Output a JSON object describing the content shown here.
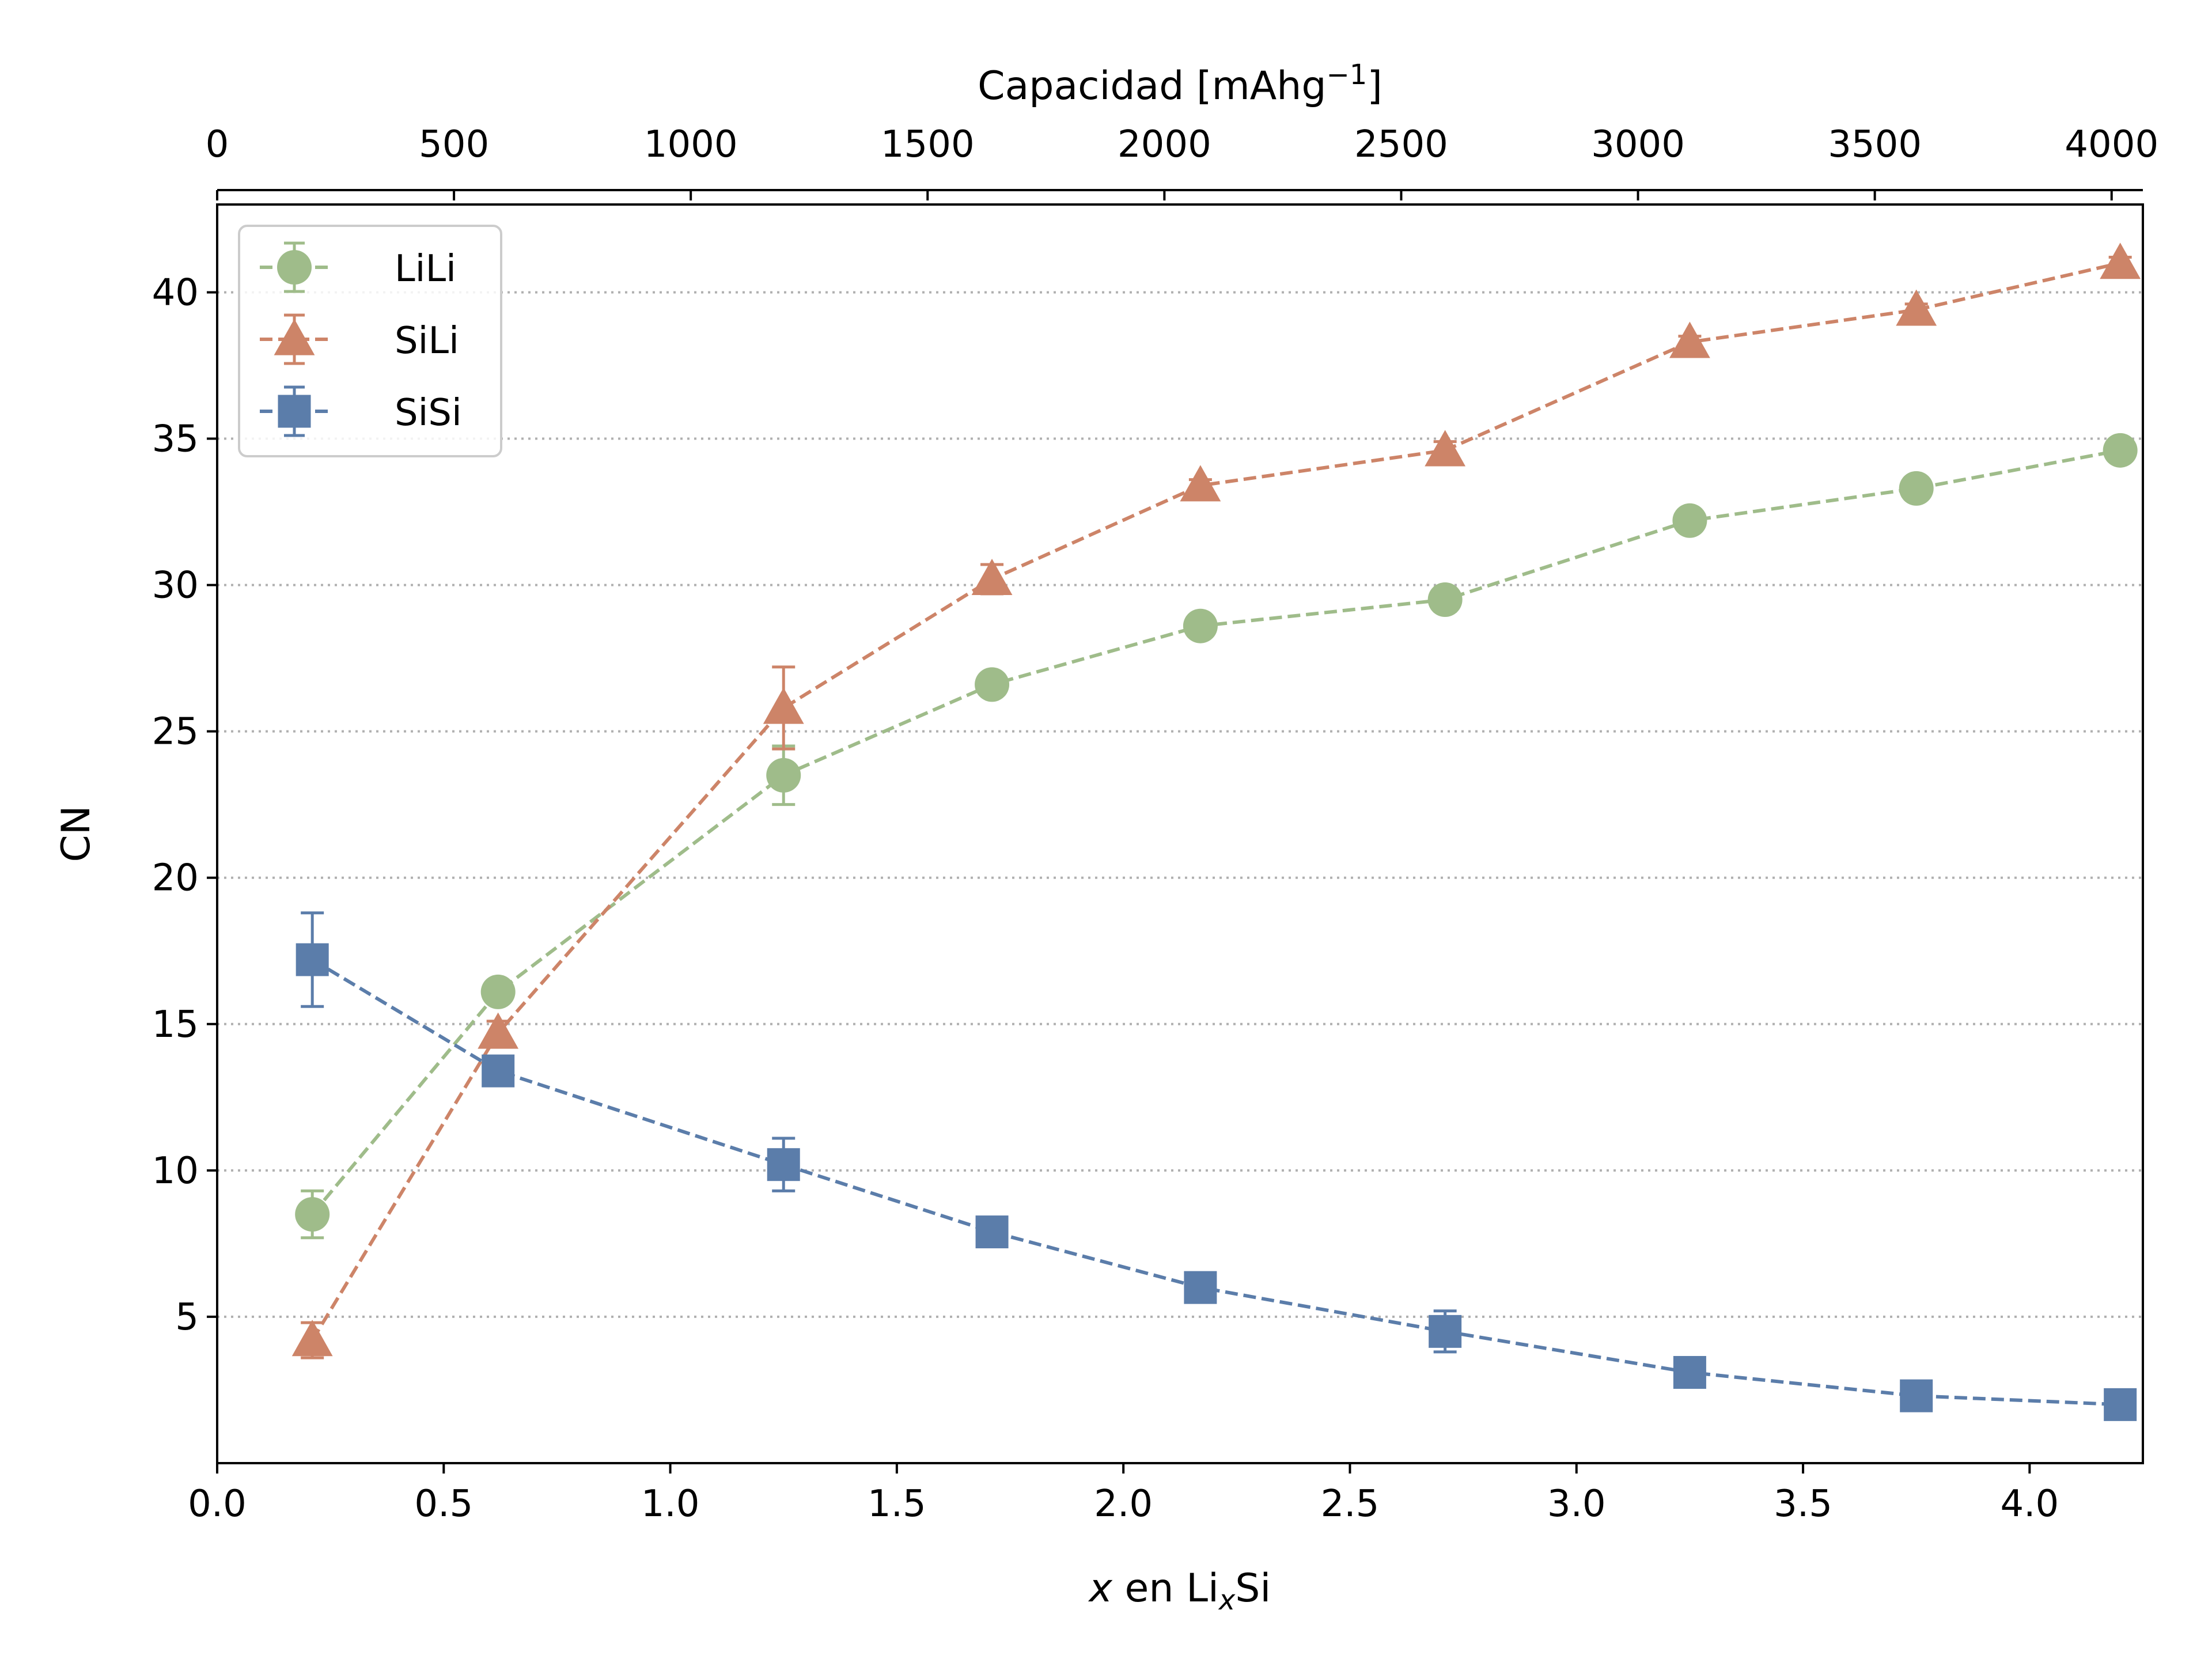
{
  "chart_data": {
    "type": "line",
    "xlabel": {
      "italic": "x",
      "mid": " en Li",
      "sub": "x",
      "end": "Si"
    },
    "ylabel": "CN",
    "top_xlabel": {
      "base": "Capacidad [mAhg",
      "sup": "−1",
      "end": "]"
    },
    "xlim": [
      0,
      4.25
    ],
    "ylim": [
      0,
      43
    ],
    "top_xlim": [
      0,
      4066
    ],
    "x_ticks": [
      "0.0",
      "0.5",
      "1.0",
      "1.5",
      "2.0",
      "2.5",
      "3.0",
      "3.5",
      "4.0"
    ],
    "y_ticks": [
      "5",
      "10",
      "15",
      "20",
      "25",
      "30",
      "35",
      "40"
    ],
    "top_ticks": [
      "0",
      "500",
      "1000",
      "1500",
      "2000",
      "2500",
      "3000",
      "3500",
      "4000"
    ],
    "grid": "horizontal dotted",
    "legend_position": "upper-left",
    "series": [
      {
        "name": "LiLi",
        "color": "#9fbc8a",
        "marker": "circle",
        "x": [
          0.21,
          0.62,
          1.25,
          1.71,
          2.17,
          2.71,
          3.25,
          3.75,
          4.2
        ],
        "y": [
          8.5,
          16.1,
          23.5,
          26.6,
          28.6,
          29.5,
          32.2,
          33.3,
          34.6
        ],
        "err": [
          0.8,
          0.3,
          1.0,
          0.3,
          0.3,
          0.4,
          0.2,
          0.2,
          0.2
        ]
      },
      {
        "name": "SiLi",
        "color": "#cd8468",
        "marker": "triangle",
        "x": [
          0.21,
          0.62,
          1.25,
          1.71,
          2.17,
          2.71,
          3.25,
          3.75,
          4.2
        ],
        "y": [
          4.2,
          14.7,
          25.8,
          30.2,
          33.4,
          34.6,
          38.3,
          39.4,
          41.0
        ],
        "err": [
          0.6,
          0.4,
          1.4,
          0.5,
          0.2,
          0.3,
          0.2,
          0.2,
          0.2
        ]
      },
      {
        "name": "SiSi",
        "color": "#5b7daa",
        "marker": "square",
        "x": [
          0.21,
          0.62,
          1.25,
          1.71,
          2.17,
          2.71,
          3.25,
          3.75,
          4.2
        ],
        "y": [
          17.2,
          13.4,
          10.2,
          7.9,
          6.0,
          4.5,
          3.1,
          2.3,
          2.0
        ],
        "err": [
          1.6,
          0.3,
          0.9,
          0.2,
          0.2,
          0.7,
          0.2,
          0.2,
          0.2
        ]
      }
    ]
  }
}
